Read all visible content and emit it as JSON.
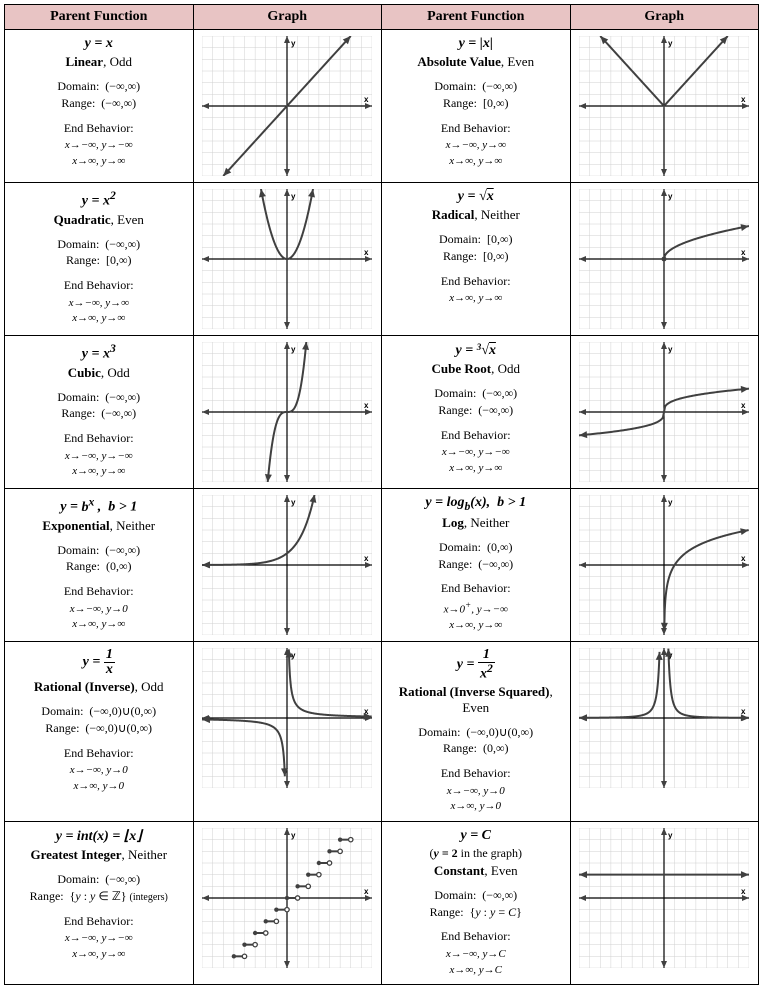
{
  "headers": {
    "parent": "Parent Function",
    "graph": "Graph"
  },
  "graph_style": {
    "width": 170,
    "height": 140,
    "xrange": [
      -8,
      8
    ],
    "yrange": [
      -6,
      6
    ],
    "grid_color": "#d0d0d0",
    "axis_color": "#000000",
    "curve_color": "#404040",
    "curve_width": 2,
    "bg": "#ffffff"
  },
  "functions": [
    {
      "id": "linear",
      "equation_html": "<i>y</i> = <i>x</i>",
      "name": "Linear",
      "symmetry": "Odd",
      "domain": "(−∞,∞)",
      "range": "(−∞,∞)",
      "end": [
        "x→−∞, y→−∞",
        "x→∞,  y→∞"
      ]
    },
    {
      "id": "abs",
      "equation_html": "<i>y</i> = |<i>x</i>|",
      "name": "Absolute Value",
      "symmetry": "Even",
      "domain": "(−∞,∞)",
      "range": "[0,∞)",
      "end": [
        "x→−∞, y→∞",
        "x→∞,  y→∞"
      ]
    },
    {
      "id": "quadratic",
      "equation_html": "<i>y</i> = <i>x</i><sup>2</sup>",
      "name": "Quadratic",
      "symmetry": "Even",
      "domain": "(−∞,∞)",
      "range": "[0,∞)",
      "end": [
        "x→−∞, y→∞",
        "x→∞,  y→∞"
      ]
    },
    {
      "id": "radical",
      "equation_html": "<i>y</i> = √<span style='text-decoration:overline'><i>x</i></span>",
      "name": "Radical",
      "symmetry": "Neither",
      "domain": "[0,∞)",
      "range": "[0,∞)",
      "end": [
        "x→∞,  y→∞"
      ]
    },
    {
      "id": "cubic",
      "equation_html": "<i>y</i> = <i>x</i><sup>3</sup>",
      "name": "Cubic",
      "symmetry": "Odd",
      "domain": "(−∞,∞)",
      "range": "(−∞,∞)",
      "end": [
        "x→−∞, y→−∞",
        "x→∞,  y→∞"
      ]
    },
    {
      "id": "cuberoot",
      "equation_html": "<i>y</i> = <span style='font-size:9px;vertical-align:4px'>3</span>√<span style='text-decoration:overline'><i>x</i></span>",
      "name": "Cube Root",
      "symmetry": "Odd",
      "domain": "(−∞,∞)",
      "range": "(−∞,∞)",
      "end": [
        "x→−∞, y→−∞",
        "x→∞,  y→∞"
      ]
    },
    {
      "id": "exp",
      "equation_html": "<i>y</i> = <i>b<sup>x</sup></i> ,&nbsp; <i>b</i> &gt; 1",
      "name": "Exponential",
      "symmetry": "Neither",
      "domain": "(−∞,∞)",
      "range": "(0,∞)",
      "end": [
        "x→−∞, y→0",
        "x→∞,  y→∞"
      ]
    },
    {
      "id": "log",
      "equation_html": "<i>y</i> = log<sub><i>b</i></sub>(<i>x</i>),&nbsp; <i>b</i> &gt; 1",
      "name": "Log",
      "symmetry": "Neither",
      "domain": "(0,∞)",
      "range": "(−∞,∞)",
      "end": [
        "x→0<sup>+</sup>, y→−∞",
        "x→∞,  y→∞"
      ]
    },
    {
      "id": "recip",
      "equation_html": "<i>y</i> = <span style='display:inline-block;text-align:center;vertical-align:middle;line-height:1'><span style='display:block;border-bottom:1px solid #000;padding:0 2px'>1</span><span style='display:block;padding:0 2px'><i>x</i></span></span>",
      "name": "Rational (Inverse)",
      "symmetry": "Odd",
      "domain": "(−∞,0)∪(0,∞)",
      "range": "(−∞,0)∪(0,∞)",
      "end": [
        "x→−∞, y→0",
        "x→∞,  y→0"
      ]
    },
    {
      "id": "recipsq",
      "equation_html": "<i>y</i> = <span style='display:inline-block;text-align:center;vertical-align:middle;line-height:1'><span style='display:block;border-bottom:1px solid #000;padding:0 2px'>1</span><span style='display:block;padding:0 2px'><i>x</i><sup>2</sup></span></span>",
      "name": "Rational (Inverse Squared)",
      "symmetry": "Even",
      "domain": "(−∞,0)∪(0,∞)",
      "range": "(0,∞)",
      "end": [
        "x→−∞, y→0",
        "x→∞,  y→0"
      ]
    },
    {
      "id": "floor",
      "equation_html": "<i>y</i> = int(<i>x</i>) = ⌊<i>x</i>⌋",
      "name": "Greatest Integer",
      "symmetry": "Neither",
      "domain": "(−∞,∞)",
      "range_html": "{<i>y</i> : <i>y</i> ∈ ℤ} <span class='sub-note'>(integers)</span>",
      "end": [
        "x→−∞, y→−∞",
        "x→∞,  y→∞"
      ]
    },
    {
      "id": "constant",
      "equation_html": "<i>y</i> = <i>C</i>",
      "sub_html": "(<b><i>y</i> = 2</b> in the graph)",
      "name": "Constant",
      "symmetry": "Even",
      "domain": "(−∞,∞)",
      "range_html": "{<i>y</i> : <i>y</i> = <i>C</i>}",
      "end": [
        "x→−∞, y→C",
        "x→∞,  y→C"
      ]
    }
  ]
}
